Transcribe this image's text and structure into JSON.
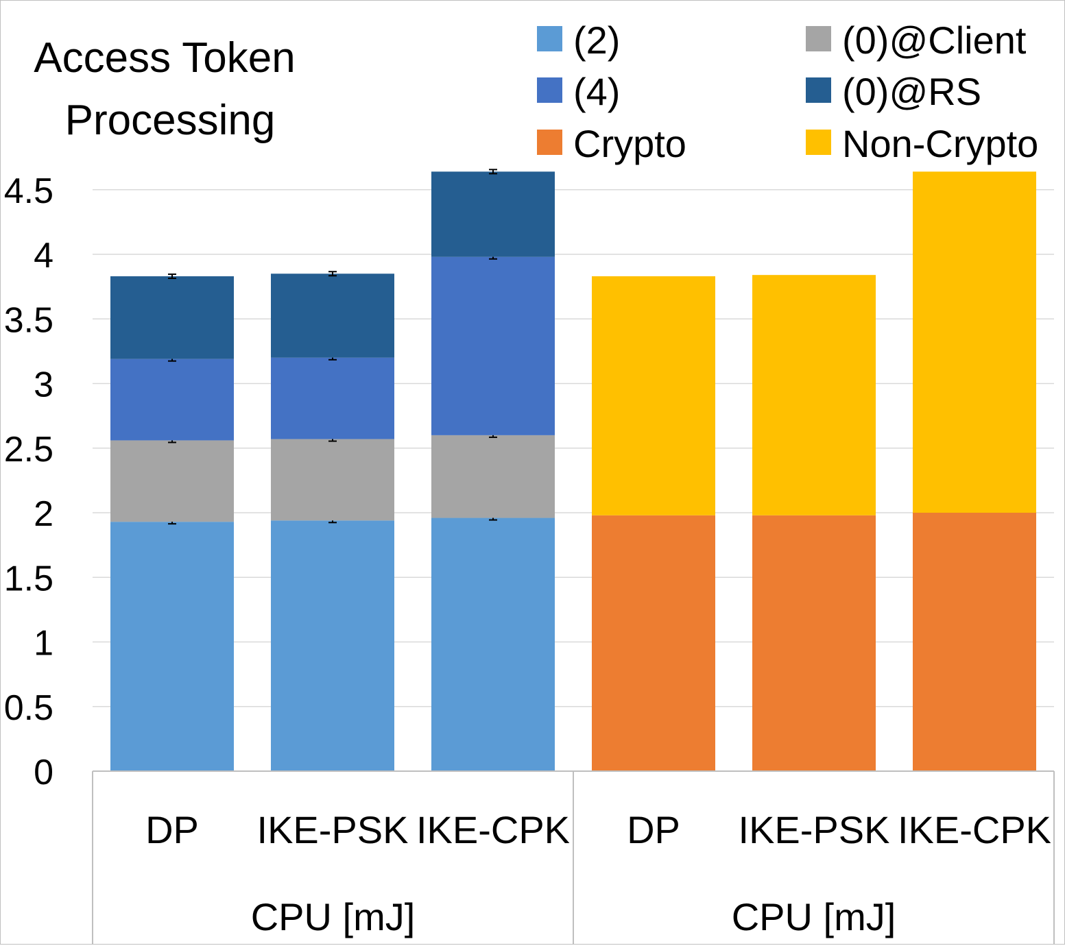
{
  "chart_data": {
    "type": "bar",
    "stacked": true,
    "title": "Access Token Processing",
    "title_lines": [
      "Access Token",
      "Processing"
    ],
    "ylim": [
      0,
      4.75
    ],
    "yticks": [
      0,
      0.5,
      1,
      1.5,
      2,
      2.5,
      3,
      3.5,
      4,
      4.5
    ],
    "ytick_labels": [
      "0",
      "0.5",
      "1",
      "1.5",
      "2",
      "2.5",
      "3",
      "3.5",
      "4",
      "4.5"
    ],
    "grid": true,
    "legend_position": "top-right",
    "groups": [
      {
        "label": "CPU [mJ]",
        "categories": [
          "DP",
          "IKE-PSK",
          "IKE-CPK"
        ],
        "series": [
          {
            "name": "(2)",
            "color": "#5b9bd5",
            "values": [
              1.93,
              1.94,
              1.96
            ]
          },
          {
            "name": "(0)@Client",
            "color": "#a5a5a5",
            "values": [
              0.63,
              0.63,
              0.64
            ]
          },
          {
            "name": "(4)",
            "color": "#4472c4",
            "values": [
              0.63,
              0.63,
              1.38
            ]
          },
          {
            "name": "(0)@RS",
            "color": "#255e91",
            "values": [
              0.64,
              0.65,
              0.66
            ]
          }
        ],
        "error_bars": true
      },
      {
        "label": "CPU [mJ]",
        "categories": [
          "DP",
          "IKE-PSK",
          "IKE-CPK"
        ],
        "series": [
          {
            "name": "Crypto",
            "color": "#ed7d31",
            "values": [
              1.98,
              1.98,
              2.0
            ]
          },
          {
            "name": "Non-Crypto",
            "color": "#ffc000",
            "values": [
              1.85,
              1.86,
              2.64
            ]
          }
        ],
        "error_bars": false
      }
    ],
    "legend": [
      {
        "name": "(2)",
        "color": "#5b9bd5"
      },
      {
        "name": "(0)@Client",
        "color": "#a5a5a5"
      },
      {
        "name": "(4)",
        "color": "#4472c4"
      },
      {
        "name": "(0)@RS",
        "color": "#255e91"
      },
      {
        "name": "Crypto",
        "color": "#ed7d31"
      },
      {
        "name": "Non-Crypto",
        "color": "#ffc000"
      }
    ]
  }
}
